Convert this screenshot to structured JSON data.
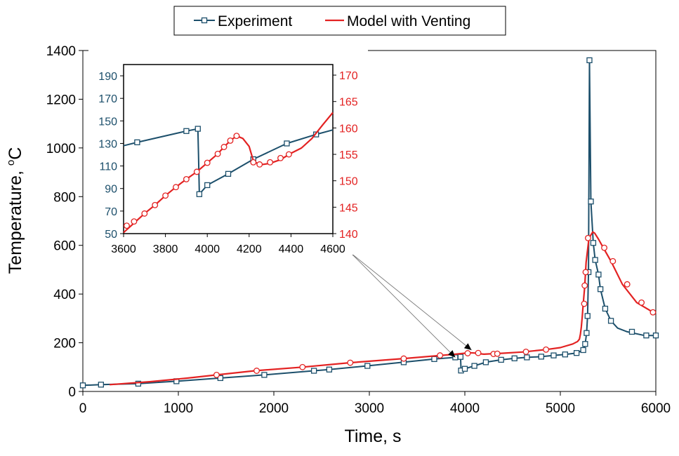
{
  "chart_data": [
    {
      "type": "line",
      "xlabel": "Time, s",
      "ylabel_main": "Temperature, ",
      "ylabel_sup": "o",
      "ylabel_unit": "C",
      "xlim": [
        0,
        6000
      ],
      "ylim": [
        0,
        1400
      ],
      "xticks": [
        0,
        1000,
        2000,
        3000,
        4000,
        5000,
        6000
      ],
      "yticks": [
        0,
        200,
        400,
        600,
        800,
        1000,
        1200,
        1400
      ],
      "grid": false,
      "legend_position": "top-center",
      "series": [
        {
          "name": "Experiment",
          "color": "#1c4f6b",
          "marker": "square",
          "x": [
            0,
            190,
            580,
            980,
            1440,
            1900,
            2420,
            2580,
            2980,
            3360,
            3680,
            3900,
            3955,
            3960,
            4000,
            4100,
            4220,
            4380,
            4520,
            4650,
            4800,
            4930,
            5050,
            5170,
            5240,
            5260,
            5275,
            5285,
            5295,
            5305,
            5320,
            5345,
            5365,
            5400,
            5420,
            5470,
            5530,
            5600,
            5700,
            5880,
            6000
          ],
          "y": [
            25,
            28,
            32,
            42,
            55,
            68,
            85,
            90,
            105,
            120,
            133,
            140,
            142,
            86,
            93,
            105,
            120,
            130,
            136,
            140,
            143,
            148,
            152,
            158,
            170,
            195,
            240,
            310,
            490,
            1360,
            780,
            610,
            540,
            480,
            420,
            340,
            290,
            260,
            245,
            230,
            230
          ],
          "markers_x": [
            0,
            190,
            580,
            980,
            1440,
            1900,
            2420,
            2580,
            2980,
            3360,
            3680,
            3900,
            3955,
            3960,
            4000,
            4100,
            4220,
            4380,
            4520,
            4650,
            4800,
            4930,
            5050,
            5170,
            5240,
            5260,
            5275,
            5285,
            5295,
            5305,
            5320,
            5345,
            5365,
            5400,
            5420,
            5470,
            5530,
            5750,
            5900,
            6000
          ],
          "markers_y": [
            25,
            28,
            32,
            42,
            55,
            68,
            85,
            90,
            105,
            120,
            133,
            140,
            142,
            86,
            93,
            105,
            120,
            130,
            136,
            140,
            143,
            148,
            152,
            158,
            170,
            195,
            240,
            310,
            490,
            1360,
            780,
            610,
            540,
            480,
            420,
            340,
            290,
            245,
            230,
            230
          ]
        },
        {
          "name": "Model with Venting",
          "color": "#e32222",
          "marker": "circle",
          "x": [
            280,
            700,
            1100,
            1400,
            1800,
            2300,
            2800,
            3360,
            3750,
            3900,
            4000,
            4050,
            4100,
            4150,
            4200,
            4250,
            4300,
            4400,
            4600,
            4850,
            5000,
            5130,
            5180,
            5200,
            5210,
            5220,
            5230,
            5240,
            5255,
            5270,
            5300,
            5340,
            5360,
            5400,
            5450,
            5530,
            5650,
            5800,
            5950,
            6000
          ],
          "y": [
            28,
            40,
            55,
            68,
            85,
            100,
            118,
            135,
            148,
            153,
            157,
            159,
            158,
            155,
            153,
            154,
            155,
            157,
            162,
            172,
            180,
            195,
            205,
            215,
            235,
            265,
            310,
            360,
            430,
            530,
            630,
            655,
            650,
            625,
            590,
            535,
            440,
            365,
            330,
            320
          ],
          "markers_x": [
            1400,
            1820,
            2300,
            2800,
            3360,
            3740,
            4030,
            4140,
            4300,
            4340,
            4640,
            4850,
            5250,
            5255,
            5265,
            5290,
            5460,
            5550,
            5700,
            5850,
            5970
          ],
          "markers_y": [
            68,
            85,
            100,
            118,
            135,
            148,
            157,
            158,
            154,
            155,
            163,
            172,
            360,
            435,
            490,
            630,
            590,
            535,
            440,
            365,
            325
          ]
        }
      ],
      "annotation_arrows": [
        {
          "to_x": 3900,
          "to_y": 140
        },
        {
          "to_x": 4070,
          "to_y": 170
        }
      ]
    },
    {
      "type": "line",
      "role": "inset",
      "xlim": [
        3600,
        4600
      ],
      "ylim_left": [
        50,
        200
      ],
      "ylim_right": [
        140,
        172
      ],
      "xticks": [
        3600,
        3800,
        4000,
        4200,
        4400,
        4600
      ],
      "yticks_left": [
        50,
        70,
        90,
        110,
        130,
        150,
        170,
        190
      ],
      "yticks_right": [
        140,
        145,
        150,
        155,
        160,
        165,
        170
      ],
      "left_axis_color": "#1c4f6b",
      "right_axis_color": "#e32222",
      "series": [
        {
          "name": "Experiment",
          "axis": "left",
          "x": [
            3600,
            3665,
            3900,
            3955,
            3958,
            3962,
            4000,
            4100,
            4220,
            4380,
            4520,
            4600
          ],
          "y": [
            128,
            131,
            141,
            143,
            120,
            85,
            93,
            103,
            116,
            130,
            138,
            142
          ],
          "markers_x": [
            3665,
            3900,
            3955,
            3962,
            4000,
            4100,
            4220,
            4380,
            4520
          ],
          "markers_y": [
            131,
            141,
            143,
            85,
            93,
            103,
            116,
            130,
            138
          ]
        },
        {
          "name": "Model with Venting",
          "axis": "right",
          "x": [
            3600,
            3650,
            3700,
            3750,
            3800,
            3850,
            3900,
            3950,
            4000,
            4050,
            4080,
            4110,
            4140,
            4170,
            4200,
            4220,
            4250,
            4300,
            4350,
            4400,
            4450,
            4500,
            4550,
            4600
          ],
          "y": [
            140.2,
            142,
            143.8,
            145.4,
            147.2,
            148.8,
            150.3,
            151.7,
            153.4,
            155.1,
            156.4,
            157.6,
            158.5,
            158.0,
            156.5,
            153.8,
            153.0,
            153.3,
            154.0,
            155.2,
            156.2,
            158,
            160.5,
            162.9
          ],
          "markers_x": [
            3615,
            3650,
            3700,
            3750,
            3800,
            3850,
            3900,
            3950,
            4000,
            4050,
            4080,
            4110,
            4140,
            4220,
            4250,
            4300,
            4350,
            4390
          ],
          "markers_y": [
            141.5,
            142.3,
            143.8,
            145.4,
            147.2,
            148.8,
            150.3,
            151.7,
            153.4,
            155.1,
            156.4,
            157.6,
            158.5,
            153.5,
            153.1,
            153.5,
            154.3,
            155.0
          ]
        }
      ]
    }
  ]
}
